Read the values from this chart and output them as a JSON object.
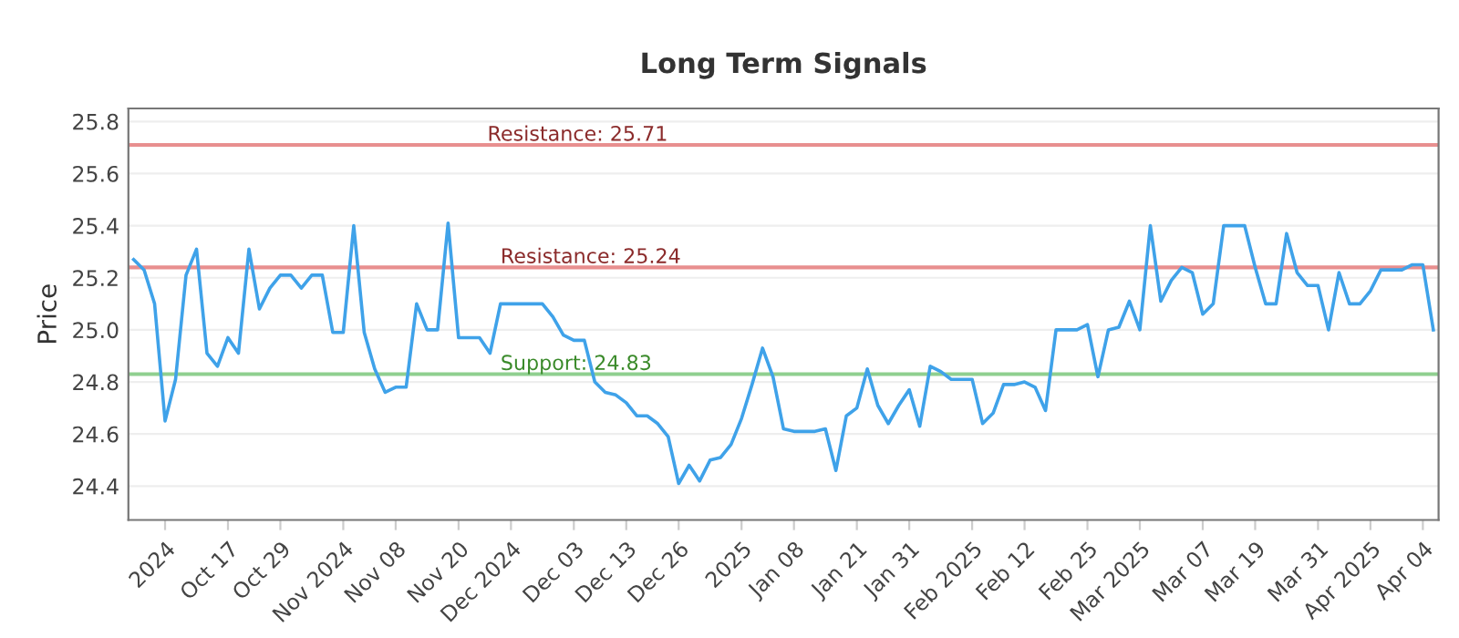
{
  "chart_data": {
    "type": "line",
    "title": "Long Term Signals",
    "ylabel": "Price",
    "categories": [
      null,
      null,
      null,
      "2024",
      null,
      null,
      null,
      null,
      null,
      "Oct 17",
      null,
      null,
      null,
      null,
      "Oct 29",
      null,
      null,
      null,
      null,
      null,
      "Nov 2024",
      null,
      null,
      null,
      null,
      "Nov 08",
      null,
      null,
      null,
      null,
      null,
      "Nov 20",
      null,
      null,
      null,
      null,
      "Dec 2024",
      null,
      null,
      null,
      null,
      null,
      "Dec 03",
      null,
      null,
      null,
      null,
      "Dec 13",
      null,
      null,
      null,
      null,
      "Dec 26",
      null,
      null,
      null,
      null,
      null,
      "2025",
      null,
      null,
      null,
      null,
      "Jan 08",
      null,
      null,
      null,
      null,
      null,
      "Jan 21",
      null,
      null,
      null,
      null,
      "Jan 31",
      null,
      null,
      null,
      null,
      null,
      "Feb 2025",
      null,
      null,
      null,
      null,
      "Feb 12",
      null,
      null,
      null,
      null,
      null,
      "Feb 25",
      null,
      null,
      null,
      null,
      "Mar 2025",
      null,
      null,
      null,
      null,
      null,
      "Mar 07",
      null,
      null,
      null,
      null,
      "Mar 19",
      null,
      null,
      null,
      null,
      null,
      "Mar 31",
      null,
      null,
      null,
      null,
      "Apr 2025",
      null,
      null,
      null,
      null,
      "Apr 04",
      null
    ],
    "series": [
      {
        "color": "#3fa2e9",
        "values": [
          25.27,
          25.23,
          25.1,
          24.65,
          24.81,
          25.21,
          25.31,
          24.91,
          24.86,
          24.97,
          24.91,
          25.31,
          25.08,
          25.16,
          25.21,
          25.21,
          25.16,
          25.21,
          25.21,
          24.99,
          24.99,
          25.4,
          24.99,
          24.85,
          24.76,
          24.78,
          24.78,
          25.1,
          25.0,
          25.0,
          25.41,
          24.97,
          24.97,
          24.97,
          24.91,
          25.1,
          25.1,
          25.1,
          25.1,
          25.1,
          25.05,
          24.98,
          24.96,
          24.96,
          24.8,
          24.76,
          24.75,
          24.72,
          24.67,
          24.67,
          24.64,
          24.59,
          24.41,
          24.48,
          24.42,
          24.5,
          24.51,
          24.56,
          24.66,
          24.79,
          24.93,
          24.82,
          24.62,
          24.61,
          24.61,
          24.61,
          24.62,
          24.46,
          24.67,
          24.7,
          24.85,
          24.71,
          24.64,
          24.71,
          24.77,
          24.63,
          24.86,
          24.84,
          24.81,
          24.81,
          24.81,
          24.64,
          24.68,
          24.79,
          24.79,
          24.8,
          24.78,
          24.69,
          25.0,
          25.0,
          25.0,
          25.02,
          24.82,
          25.0,
          25.01,
          25.11,
          25.0,
          25.4,
          25.11,
          25.19,
          25.24,
          25.22,
          25.06,
          25.1,
          25.4,
          25.4,
          25.4,
          25.24,
          25.1,
          25.1,
          25.37,
          25.22,
          25.17,
          25.17,
          25.0,
          25.22,
          25.1,
          25.1,
          25.15,
          25.23,
          25.23,
          25.23,
          25.25,
          25.25,
          25.0
        ]
      }
    ],
    "ylim": [
      24.27,
      25.85
    ],
    "yticks": [
      24.4,
      24.6,
      24.8,
      {
        "value": 25,
        "label": "25.0"
      },
      25.2,
      25.4,
      25.6,
      25.8
    ],
    "grid": "y",
    "marker": "none",
    "line_style": "solid",
    "ref_lines": [
      {
        "axis": "y",
        "value": 25.71,
        "label": "Resistance: 25.71",
        "color": "#e88f8f"
      },
      {
        "axis": "y",
        "value": 25.24,
        "label": "Resistance: 25.24",
        "color": "#e88f8f"
      },
      {
        "axis": "y",
        "value": 24.83,
        "label": "Support: 24.83",
        "color": "#8fcf8f"
      }
    ]
  }
}
